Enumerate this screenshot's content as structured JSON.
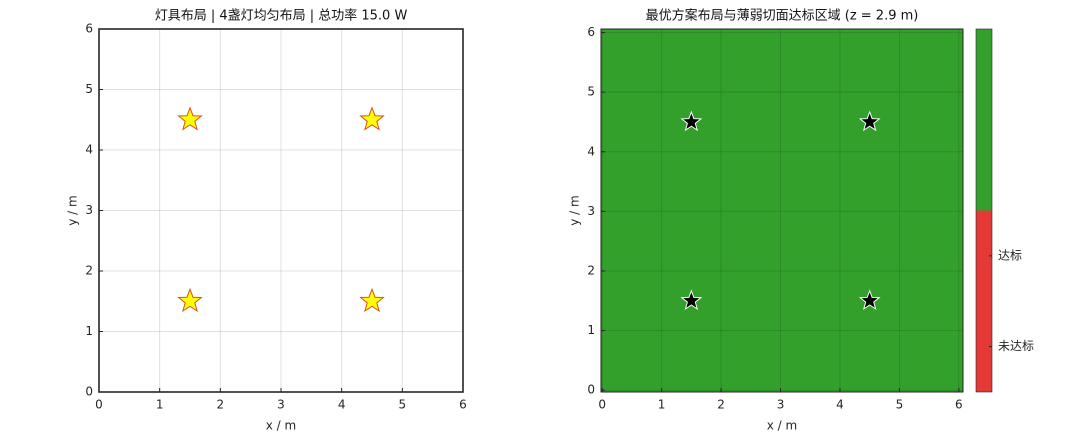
{
  "chart_data": [
    {
      "type": "scatter",
      "title": "灯具布局  |  4盏灯均匀布局  |  总功率 15.0 W",
      "x_label": "x / m",
      "y_label": "y / m",
      "x": [
        1.5,
        4.5,
        1.5,
        4.5
      ],
      "y": [
        4.5,
        4.5,
        1.5,
        1.5
      ],
      "color": "#ffff00",
      "edgecolor": "#d95319",
      "xlim": [
        0,
        6
      ],
      "ylim": [
        0,
        6
      ],
      "xticks": [
        0,
        1,
        2,
        3,
        4,
        5,
        6
      ],
      "yticks": [
        0,
        1,
        2,
        3,
        4,
        5,
        6
      ],
      "grid": true,
      "background": "#ffffff"
    },
    {
      "type": "scatter",
      "title": "最优方案布局与薄弱切面达标区域  (z = 2.9 m)",
      "x_label": "x / m",
      "y_label": "y / m",
      "x": [
        1.5,
        4.5,
        1.5,
        4.5
      ],
      "y": [
        4.5,
        4.5,
        1.5,
        1.5
      ],
      "color": "#000000",
      "edgecolor": "#ffffff",
      "xlim": [
        -0.02,
        6.07
      ],
      "ylim": [
        -0.03,
        6.06
      ],
      "xticks": [
        0,
        1,
        2,
        3,
        4,
        5,
        6
      ],
      "yticks": [
        0,
        1,
        2,
        3,
        4,
        5,
        6
      ],
      "grid": true,
      "background": "#33a02c",
      "colorbar": {
        "clim": [
          0,
          1
        ],
        "colors": [
          "#e53935",
          "#33a02c"
        ],
        "ticks": [
          {
            "value": 0.125,
            "label": "未达标"
          },
          {
            "value": 0.375,
            "label": "达标"
          }
        ]
      }
    }
  ]
}
